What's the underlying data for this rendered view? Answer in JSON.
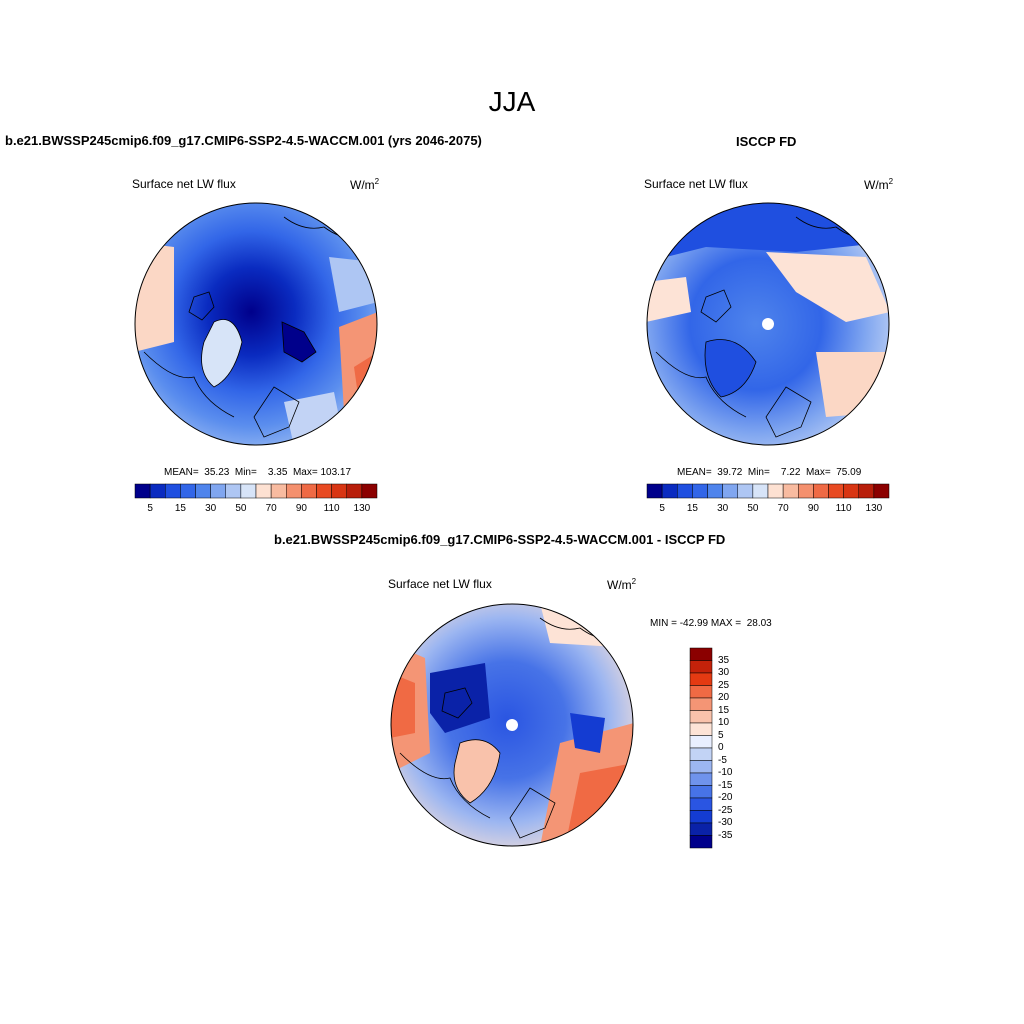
{
  "header": {
    "title": "JJA"
  },
  "panels": {
    "model": {
      "title": "b.e21.BWSSP245cmip6.f09_g17.CMIP6-SSP2-4.5-WACCM.001 (yrs 2046-2075)",
      "variable": "Surface net LW flux",
      "units_base": "W/m",
      "units_exp": "2",
      "stats": "MEAN=  35.23  Min=    3.35  Max= 103.17"
    },
    "obs": {
      "title": "ISCCP FD",
      "variable": "Surface net LW flux",
      "units_base": "W/m",
      "units_exp": "2",
      "stats": "MEAN=  39.72  Min=    7.22  Max=  75.09"
    },
    "diff": {
      "title": "b.e21.BWSSP245cmip6.f09_g17.CMIP6-SSP2-4.5-WACCM.001 - ISCCP FD",
      "variable": "Surface net LW flux",
      "units_base": "W/m",
      "units_exp": "2",
      "stats": "MIN = -42.99 MAX =  28.03"
    }
  },
  "colorbar_abs": {
    "colors": [
      "#00008b",
      "#0a2bc0",
      "#1f4fe0",
      "#3266e8",
      "#4f84ec",
      "#80a6f0",
      "#aec6f3",
      "#d7e4f8",
      "#fde1d2",
      "#f8bba0",
      "#f4906e",
      "#ef6a45",
      "#e84a22",
      "#d83513",
      "#b81e0a",
      "#8b0000"
    ],
    "labels": [
      "5",
      "15",
      "30",
      "50",
      "70",
      "90",
      "110",
      "130"
    ]
  },
  "colorbar_diff": {
    "colors": [
      "#8b0000",
      "#c4220a",
      "#e43a12",
      "#f06a44",
      "#f49575",
      "#f9c2ab",
      "#fde3d6",
      "#e9efff",
      "#c2d3f5",
      "#9cb6f1",
      "#6f93ec",
      "#4773e7",
      "#2a55e2",
      "#143cd2",
      "#0a22a8",
      "#00008b"
    ],
    "labels": [
      "35",
      "30",
      "25",
      "20",
      "15",
      "10",
      "5",
      "0",
      "-5",
      "-10",
      "-15",
      "-20",
      "-25",
      "-30",
      "-35"
    ]
  }
}
